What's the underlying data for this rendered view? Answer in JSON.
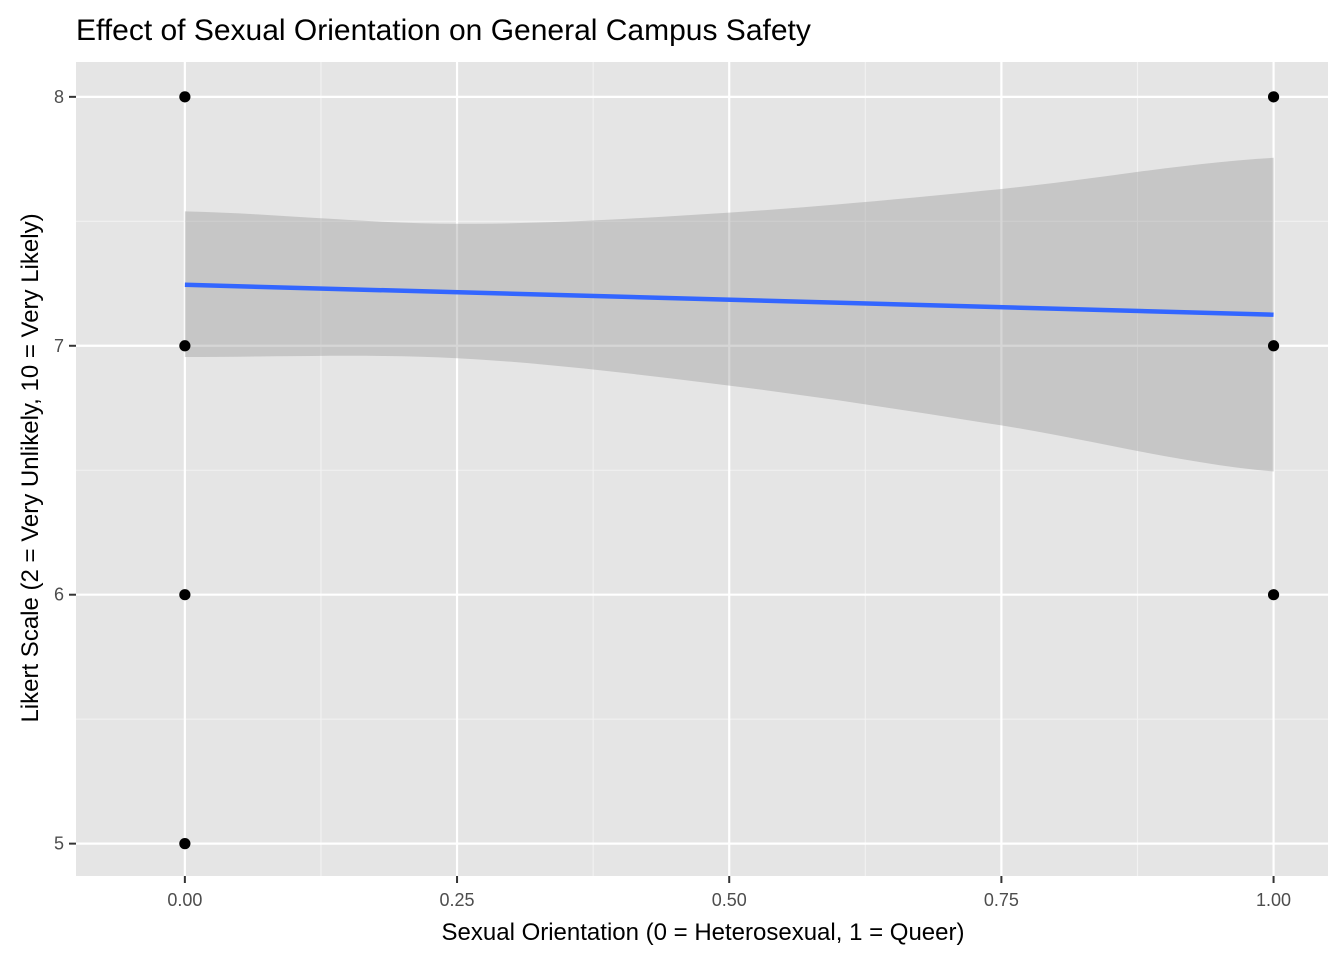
{
  "chart_data": {
    "type": "scatter",
    "title": "Effect of Sexual Orientation on General Campus Safety",
    "xlabel": "Sexual Orientation (0 = Heterosexual, 1 = Queer)",
    "ylabel": "Likert Scale (2 = Very Unlikely, 10 = Very Likely)",
    "xlim": [
      -0.1,
      1.05
    ],
    "ylim": [
      4.87,
      8.14
    ],
    "x_ticks": [
      {
        "value": 0,
        "label": "0.00"
      },
      {
        "value": 0.25,
        "label": "0.25"
      },
      {
        "value": 0.5,
        "label": "0.50"
      },
      {
        "value": 0.75,
        "label": "0.75"
      },
      {
        "value": 1,
        "label": "1.00"
      }
    ],
    "y_ticks": [
      {
        "value": 5,
        "label": "5"
      },
      {
        "value": 6,
        "label": "6"
      },
      {
        "value": 7,
        "label": "7"
      },
      {
        "value": 8,
        "label": "8"
      }
    ],
    "grid": true,
    "points": [
      {
        "x": 0,
        "y": 8
      },
      {
        "x": 0,
        "y": 7
      },
      {
        "x": 0,
        "y": 6
      },
      {
        "x": 0,
        "y": 5
      },
      {
        "x": 1,
        "y": 8
      },
      {
        "x": 1,
        "y": 7
      },
      {
        "x": 1,
        "y": 6
      }
    ],
    "fit_line": {
      "method": "linear",
      "x": [
        0,
        1
      ],
      "y": [
        7.245,
        7.125
      ]
    },
    "confidence_band": {
      "x": [
        0,
        0.25,
        0.5,
        0.75,
        1
      ],
      "upper": [
        7.54,
        7.49,
        7.535,
        7.63,
        7.755
      ],
      "lower": [
        6.955,
        6.95,
        6.84,
        6.68,
        6.495
      ]
    },
    "colors": {
      "panel_background": "#e5e5e5",
      "grid_major": "#ffffff",
      "grid_minor": "#f2f2f2",
      "points": "#000000",
      "fit_line": "#3366ff",
      "band": "#999999"
    }
  }
}
